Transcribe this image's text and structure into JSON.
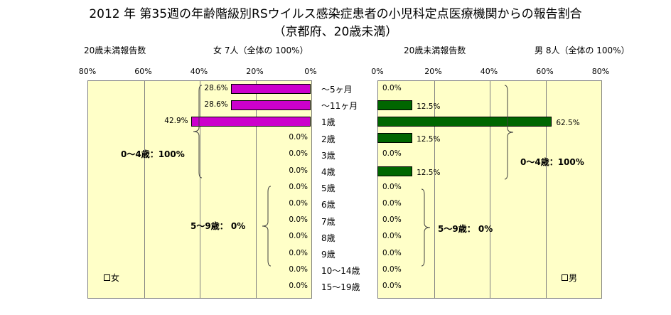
{
  "title": "2012 年 第35週の年齢階級別RSウイルス感染症患者の小児科定点医療機関からの報告割合",
  "subtitle": "（京都府、20歳未満）",
  "left_header": "20歳未満報告数",
  "right_header": "20歳未満報告数",
  "female_summary": "女  7人（全体の  100%）",
  "male_summary": "男  8人（全体の  100%）",
  "colors": {
    "female": "#cc00cc",
    "male": "#006600",
    "plot_bg": "#ffffc8",
    "grid": "#808080"
  },
  "chart_data": {
    "type": "bar",
    "orientation": "horizontal-butterfly",
    "categories": [
      "～5ヶ月",
      "～11ヶ月",
      "1歳",
      "2歳",
      "3歳",
      "4歳",
      "5歳",
      "6歳",
      "7歳",
      "8歳",
      "9歳",
      "10～14歳",
      "15～19歳"
    ],
    "axis_ticks": [
      "80%",
      "60%",
      "40%",
      "20%",
      "0%"
    ],
    "axis_ticks_right": [
      "0%",
      "20%",
      "40%",
      "60%",
      "80%"
    ],
    "xlim": [
      0,
      80
    ],
    "grid": true,
    "series": [
      {
        "name": "女",
        "side": "left",
        "values": [
          28.6,
          28.6,
          42.9,
          0,
          0,
          0,
          0,
          0,
          0,
          0,
          0,
          0,
          0
        ],
        "labels": [
          "28.6%",
          "28.6%",
          "42.9%",
          "0.0%",
          "0.0%",
          "0.0%",
          "0.0%",
          "0.0%",
          "0.0%",
          "0.0%",
          "0.0%",
          "0.0%",
          "0.0%"
        ]
      },
      {
        "name": "男",
        "side": "right",
        "values": [
          0,
          12.5,
          62.5,
          12.5,
          0,
          12.5,
          0,
          0,
          0,
          0,
          0,
          0,
          0
        ],
        "labels": [
          "0.0%",
          "12.5%",
          "62.5%",
          "12.5%",
          "0.0%",
          "12.5%",
          "0.0%",
          "0.0%",
          "0.0%",
          "0.0%",
          "0.0%",
          "0.0%",
          "0.0%"
        ]
      }
    ],
    "annotations": {
      "female_0_4": "0～4歳：100%",
      "female_5_9": "5～9歳：  0%",
      "male_0_4": "0～4歳：100%",
      "male_5_9": "5～9歳：  0%"
    },
    "legend": {
      "female": "女",
      "male": "男"
    }
  }
}
